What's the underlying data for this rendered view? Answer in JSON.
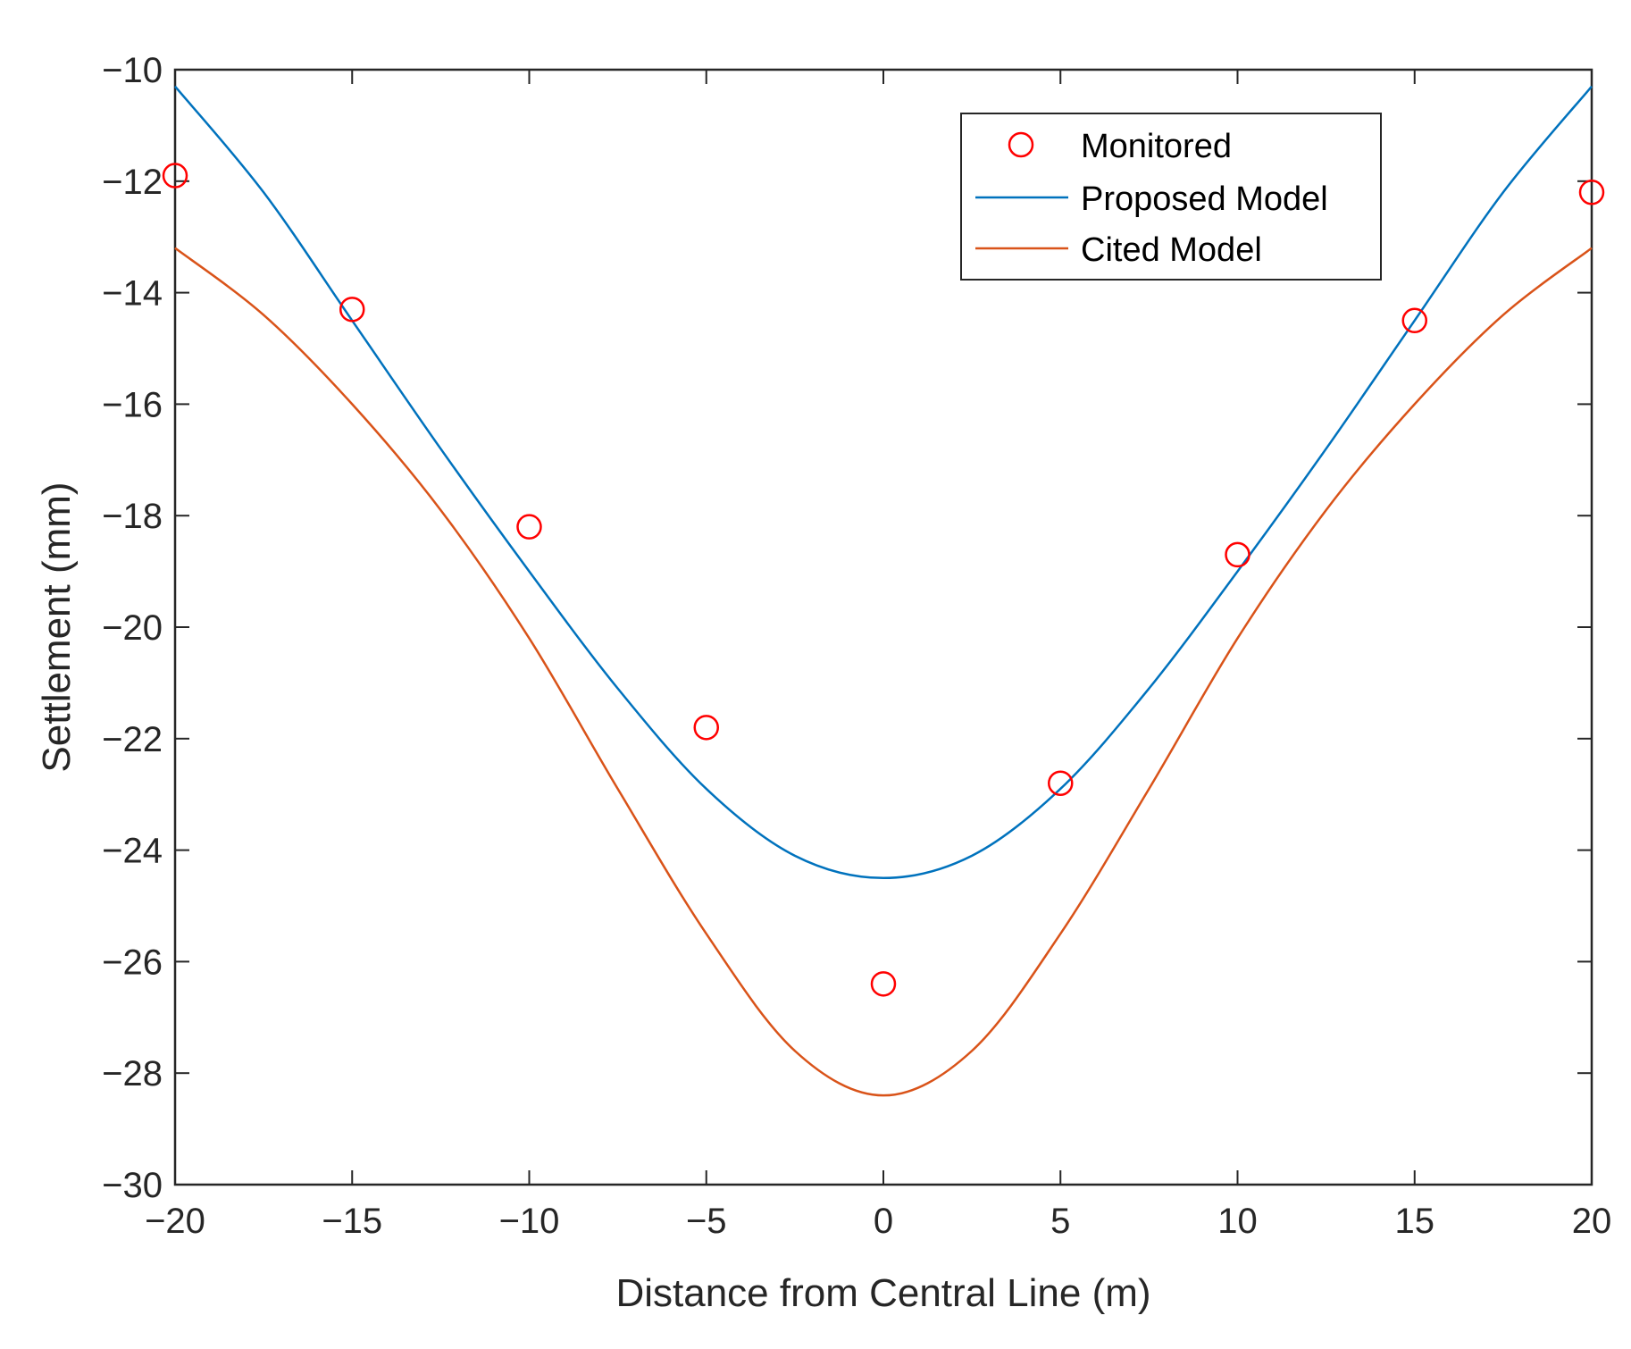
{
  "chart_data": {
    "type": "line",
    "title": "",
    "xlabel": "Distance from Central Line (m)",
    "ylabel": "Settlement (mm)",
    "xlim": [
      -20,
      20
    ],
    "ylim": [
      -30,
      -10
    ],
    "xticks": [
      -20,
      -15,
      -10,
      -5,
      0,
      5,
      10,
      15,
      20
    ],
    "yticks": [
      -10,
      -12,
      -14,
      -16,
      -18,
      -20,
      -22,
      -24,
      -26,
      -28,
      -30
    ],
    "xtick_labels": [
      "−20",
      "−15",
      "−10",
      "−5",
      "0",
      "5",
      "10",
      "15",
      "20"
    ],
    "ytick_labels": [
      "−10",
      "−12",
      "−14",
      "−16",
      "−18",
      "−20",
      "−22",
      "−24",
      "−26",
      "−28",
      "−30"
    ],
    "grid": false,
    "legend_position": "top-right",
    "series": [
      {
        "name": "Monitored",
        "kind": "scatter",
        "marker": "circle-open",
        "color": "#ff0000",
        "x": [
          -20,
          -15,
          -10,
          -5,
          0,
          5,
          10,
          15,
          20
        ],
        "y": [
          -11.9,
          -14.3,
          -18.2,
          -21.8,
          -26.4,
          -22.8,
          -18.7,
          -14.5,
          -12.2
        ]
      },
      {
        "name": "Proposed Model",
        "kind": "line",
        "color": "#0072bd",
        "x": [
          -20,
          -17.5,
          -15,
          -12.5,
          -10,
          -7.5,
          -5,
          -2.5,
          0,
          2.5,
          5,
          7.5,
          10,
          12.5,
          15,
          17.5,
          20
        ],
        "y": [
          -10.3,
          -12.2,
          -14.5,
          -16.8,
          -19.0,
          -21.1,
          -22.9,
          -24.1,
          -24.5,
          -24.1,
          -22.9,
          -21.1,
          -19.0,
          -16.8,
          -14.5,
          -12.2,
          -10.3
        ]
      },
      {
        "name": "Cited Model",
        "kind": "line",
        "color": "#d95319",
        "x": [
          -20,
          -17.5,
          -15,
          -12.5,
          -10,
          -7.5,
          -5,
          -2.5,
          0,
          2.5,
          5,
          7.5,
          10,
          12.5,
          15,
          17.5,
          20
        ],
        "y": [
          -13.2,
          -14.4,
          -16.0,
          -17.9,
          -20.2,
          -22.9,
          -25.5,
          -27.6,
          -28.4,
          -27.6,
          -25.5,
          -22.9,
          -20.2,
          -17.9,
          -16.0,
          -14.4,
          -13.2
        ]
      }
    ]
  }
}
